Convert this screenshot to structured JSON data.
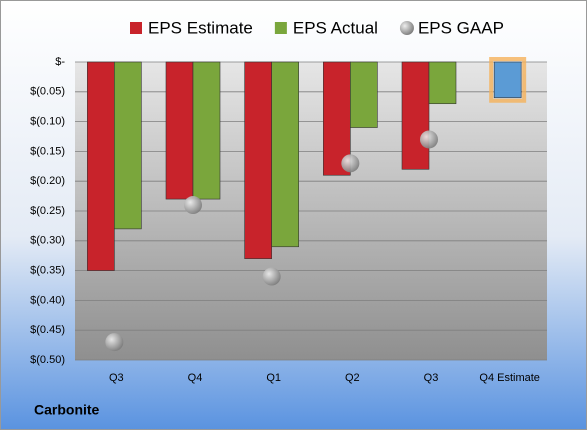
{
  "chart_data": {
    "type": "bar",
    "footer": "Carbonite",
    "categories": [
      "Q3",
      "Q4",
      "Q1",
      "Q2",
      "Q3",
      "Q4 Estimate"
    ],
    "series": [
      {
        "name": "EPS Estimate",
        "color": "#c8232b",
        "point_colors": [
          null,
          null,
          null,
          null,
          null,
          "#5b9bd5"
        ],
        "values": [
          -0.35,
          -0.23,
          -0.33,
          -0.19,
          -0.18,
          -0.06
        ]
      },
      {
        "name": "EPS Actual",
        "color": "#7aa63c",
        "values": [
          -0.28,
          -0.23,
          -0.31,
          -0.11,
          -0.07,
          null
        ]
      },
      {
        "name": "EPS GAAP",
        "color": "#a6a6a6",
        "marker": "circle",
        "values": [
          -0.47,
          -0.24,
          -0.36,
          -0.17,
          -0.13,
          null
        ]
      }
    ],
    "ylim": [
      -0.5,
      0
    ],
    "yticks": [
      {
        "value": 0,
        "label": "$-"
      },
      {
        "value": -0.05,
        "label": "$(0.05)"
      },
      {
        "value": -0.1,
        "label": "$(0.10)"
      },
      {
        "value": -0.15,
        "label": "$(0.15)"
      },
      {
        "value": -0.2,
        "label": "$(0.20)"
      },
      {
        "value": -0.25,
        "label": "$(0.25)"
      },
      {
        "value": -0.3,
        "label": "$(0.30)"
      },
      {
        "value": -0.35,
        "label": "$(0.35)"
      },
      {
        "value": -0.4,
        "label": "$(0.40)"
      },
      {
        "value": -0.45,
        "label": "$(0.45)"
      },
      {
        "value": -0.5,
        "label": "$(0.50)"
      }
    ],
    "grid": true,
    "legend": "top"
  }
}
